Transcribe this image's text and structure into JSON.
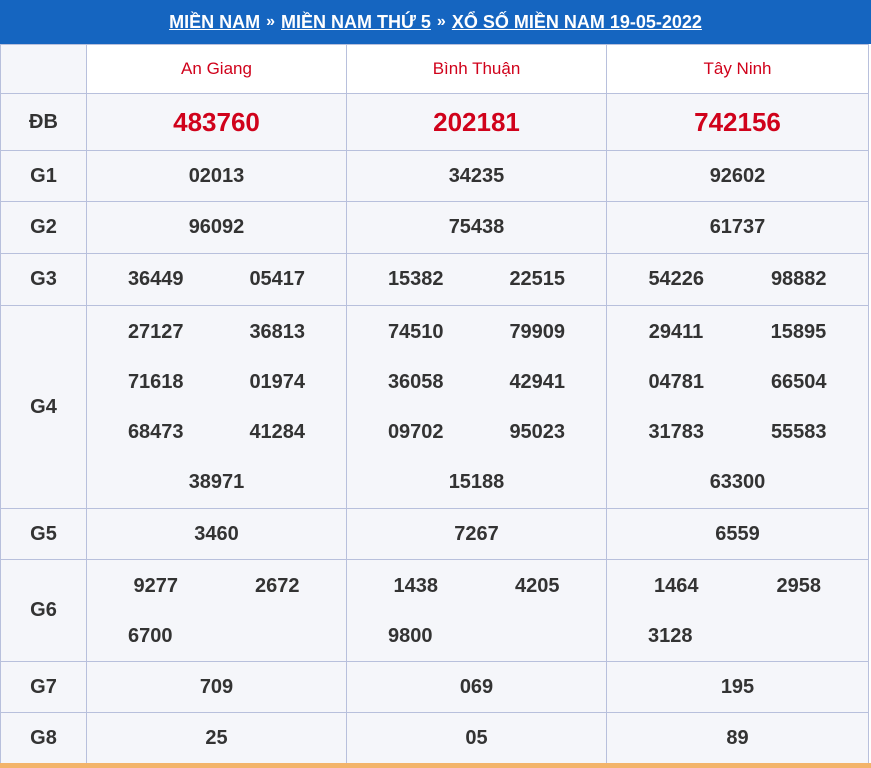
{
  "breadcrumb": {
    "region": "MIỀN NAM",
    "day": "MIỀN NAM THỨ 5",
    "title": "XỔ SỐ MIỀN NAM 19-05-2022",
    "separator": "»"
  },
  "provinces": [
    "An Giang",
    "Bình Thuận",
    "Tây Ninh"
  ],
  "labels": {
    "db": "ĐB",
    "g1": "G1",
    "g2": "G2",
    "g3": "G3",
    "g4": "G4",
    "g5": "G5",
    "g6": "G6",
    "g7": "G7",
    "g8": "G8"
  },
  "results": {
    "db": [
      "483760",
      "202181",
      "742156"
    ],
    "g1": [
      "02013",
      "34235",
      "92602"
    ],
    "g2": [
      "96092",
      "75438",
      "61737"
    ],
    "g3": [
      [
        "36449",
        "05417"
      ],
      [
        "15382",
        "22515"
      ],
      [
        "54226",
        "98882"
      ]
    ],
    "g4": [
      [
        "27127",
        "36813",
        "71618",
        "01974",
        "68473",
        "41284",
        "38971"
      ],
      [
        "74510",
        "79909",
        "36058",
        "42941",
        "09702",
        "95023",
        "15188"
      ],
      [
        "29411",
        "15895",
        "04781",
        "66504",
        "31783",
        "55583",
        "63300"
      ]
    ],
    "g5": [
      "3460",
      "7267",
      "6559"
    ],
    "g6": [
      [
        "9277",
        "2672",
        "6700"
      ],
      [
        "1438",
        "4205",
        "9800"
      ],
      [
        "1464",
        "2958",
        "3128"
      ]
    ],
    "g7": [
      "709",
      "069",
      "195"
    ],
    "g8": [
      "25",
      "05",
      "89"
    ]
  },
  "colors": {
    "header_bg": "#1565c0",
    "accent_red": "#d0021b",
    "border": "#b8c0dc",
    "bottom_strip": "#f3b46a"
  }
}
